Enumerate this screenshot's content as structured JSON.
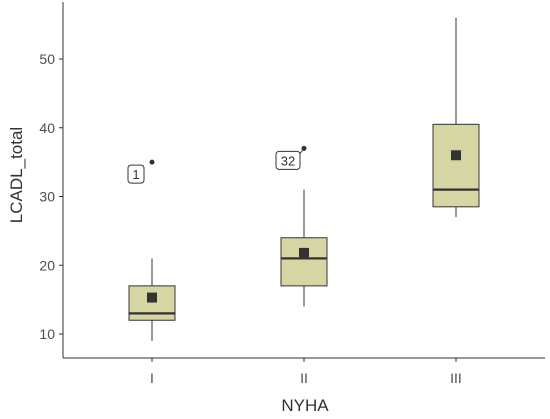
{
  "chart_data": {
    "type": "boxplot",
    "xlabel": "NYHA",
    "ylabel": "LCADL_total",
    "categories": [
      "I",
      "II",
      "III"
    ],
    "ylim": [
      8,
      57
    ],
    "yticks": [
      10,
      20,
      30,
      40,
      50
    ],
    "boxes": [
      {
        "category": "I",
        "min": 9,
        "q1": 12,
        "median": 13,
        "q3": 17,
        "max": 21,
        "mean": 15.3,
        "outliers": [
          35
        ]
      },
      {
        "category": "II",
        "min": 14,
        "q1": 17,
        "median": 21,
        "q3": 24,
        "max": 31,
        "mean": 21.8,
        "outliers": [
          37
        ]
      },
      {
        "category": "III",
        "min": 27,
        "q1": 28.5,
        "median": 31,
        "q3": 40.5,
        "max": 56,
        "mean": 36,
        "outliers": []
      }
    ],
    "outlier_labels": [
      {
        "category": "I",
        "value": 35,
        "label": "1"
      },
      {
        "category": "II",
        "value": 37,
        "label": "32"
      }
    ],
    "colors": {
      "box_fill": "#d6d5a4",
      "line": "#333333",
      "axis": "#333333"
    },
    "grid": false
  }
}
